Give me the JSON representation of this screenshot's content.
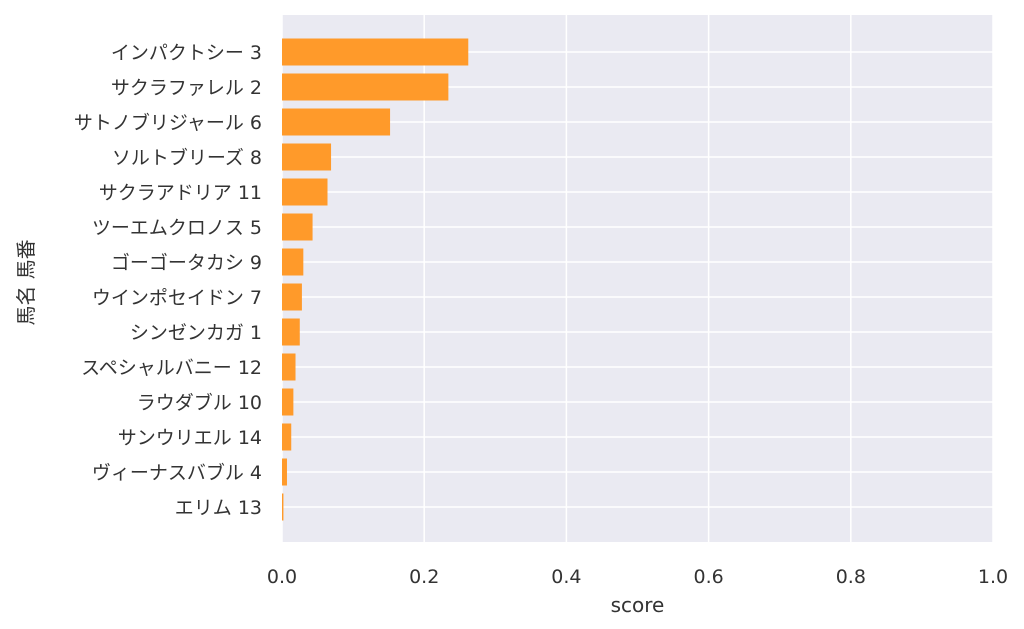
{
  "chart_data": {
    "type": "bar",
    "orientation": "horizontal",
    "xlabel": "score",
    "ylabel": "馬名 馬番",
    "xlim": [
      0,
      1.0
    ],
    "xticks": [
      "0.0",
      "0.2",
      "0.4",
      "0.6",
      "0.8",
      "1.0"
    ],
    "grid": true,
    "bar_color": "#ff9a2a",
    "background_color": "#eaeaf2",
    "categories": [
      "インパクトシー 3",
      "サクラファレル 2",
      "サトノブリジャール 6",
      "ソルトブリーズ 8",
      "サクラアドリア 11",
      "ツーエムクロノス 5",
      "ゴーゴータカシ 9",
      "ウインポセイドン 7",
      "シンゼンカガ 1",
      "スペシャルバニー 12",
      "ラウダブル 10",
      "サンウリエル 14",
      "ヴィーナスバブル 4",
      "エリム 13"
    ],
    "values": [
      0.262,
      0.234,
      0.152,
      0.069,
      0.064,
      0.043,
      0.03,
      0.028,
      0.025,
      0.019,
      0.016,
      0.013,
      0.007,
      0.002
    ]
  }
}
